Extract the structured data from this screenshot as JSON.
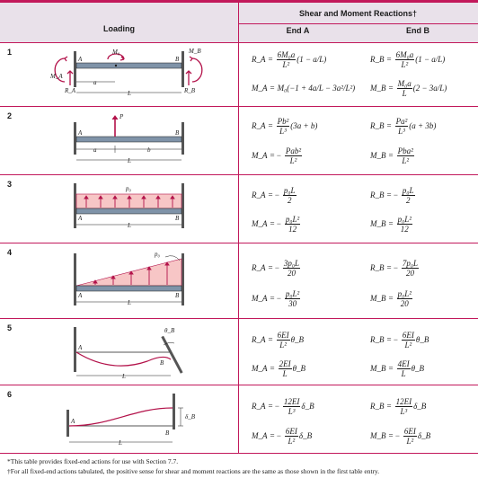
{
  "header": {
    "loading": "Loading",
    "reactions_title": "Shear and Moment Reactions†",
    "end_a": "End A",
    "end_b": "End B"
  },
  "rows": [
    {
      "num": "1",
      "labels": {
        "m0": "M₀",
        "mb": "M_B",
        "ma": "M_A",
        "ra": "R_A",
        "rb": "R_B",
        "a": "A",
        "b": "B",
        "dim_a": "a",
        "dim_L": "L"
      },
      "ra": {
        "lhs": "R_A",
        "op": "=",
        "num": "6M₀a",
        "den": "L²",
        "tail": "(1 − a/L)"
      },
      "rb": {
        "lhs": "R_B",
        "op": "=",
        "num": "6M₀a",
        "den": "L²",
        "tail": "(1 − a/L)"
      },
      "ma": {
        "lhs": "M_A",
        "op": "=",
        "pre": "M₀",
        "tail": "(−1 + 4a/L − 3a²/L²)"
      },
      "mb": {
        "lhs": "M_B",
        "op": "=",
        "num": "M₀a",
        "den": "L",
        "tail": "(2 − 3a/L)"
      }
    },
    {
      "num": "2",
      "labels": {
        "p": "P",
        "a_end": "A",
        "b_end": "B",
        "dim_a": "a",
        "dim_b": "b",
        "dim_L": "L"
      },
      "ra": {
        "lhs": "R_A",
        "op": "=",
        "num": "Pb²",
        "den": "L³",
        "tail": "(3a + b)"
      },
      "rb": {
        "lhs": "R_B",
        "op": "=",
        "num": "Pa²",
        "den": "L³",
        "tail": "(a + 3b)"
      },
      "ma": {
        "lhs": "M_A",
        "op": "= −",
        "num": "Pab²",
        "den": "L²",
        "tail": ""
      },
      "mb": {
        "lhs": "M_B",
        "op": "=",
        "num": "Pba²",
        "den": "L²",
        "tail": ""
      }
    },
    {
      "num": "3",
      "labels": {
        "p0": "p₀",
        "a_end": "A",
        "b_end": "B",
        "dim_L": "L"
      },
      "ra": {
        "lhs": "R_A",
        "op": "= −",
        "num": "p₀L",
        "den": "2",
        "tail": ""
      },
      "rb": {
        "lhs": "R_B",
        "op": "= −",
        "num": "p₀L",
        "den": "2",
        "tail": ""
      },
      "ma": {
        "lhs": "M_A",
        "op": "= −",
        "num": "p₀L²",
        "den": "12",
        "tail": ""
      },
      "mb": {
        "lhs": "M_B",
        "op": "=",
        "num": "p₀L²",
        "den": "12",
        "tail": ""
      }
    },
    {
      "num": "4",
      "labels": {
        "p0": "p₀",
        "a_end": "A",
        "b_end": "B",
        "dim_L": "L"
      },
      "ra": {
        "lhs": "R_A",
        "op": "= −",
        "num": "3p₀L",
        "den": "20",
        "tail": ""
      },
      "rb": {
        "lhs": "R_B",
        "op": "= −",
        "num": "7p₀L",
        "den": "20",
        "tail": ""
      },
      "ma": {
        "lhs": "M_A",
        "op": "= −",
        "num": "p₀L²",
        "den": "30",
        "tail": ""
      },
      "mb": {
        "lhs": "M_B",
        "op": "=",
        "num": "p₀L²",
        "den": "20",
        "tail": ""
      }
    },
    {
      "num": "5",
      "labels": {
        "theta": "θ_B",
        "a_end": "A",
        "b_end": "B",
        "dim_L": "L"
      },
      "ra": {
        "lhs": "R_A",
        "op": "=",
        "num": "6EI",
        "den": "L²",
        "tail": "θ_B"
      },
      "rb": {
        "lhs": "R_B",
        "op": "= −",
        "num": "6EI",
        "den": "L²",
        "tail": "θ_B"
      },
      "ma": {
        "lhs": "M_A",
        "op": "=",
        "num": "2EI",
        "den": "L",
        "tail": "θ_B"
      },
      "mb": {
        "lhs": "M_B",
        "op": "=",
        "num": "4EI",
        "den": "L",
        "tail": "θ_B"
      }
    },
    {
      "num": "6",
      "labels": {
        "delta": "δ_B",
        "a_end": "A",
        "b_end": "B",
        "dim_L": "L"
      },
      "ra": {
        "lhs": "R_A",
        "op": "= −",
        "num": "12EI",
        "den": "L³",
        "tail": "δ_B"
      },
      "rb": {
        "lhs": "R_B",
        "op": "=",
        "num": "12EI",
        "den": "L³",
        "tail": "δ_B"
      },
      "ma": {
        "lhs": "M_A",
        "op": "= −",
        "num": "6EI",
        "den": "L²",
        "tail": "δ_B"
      },
      "mb": {
        "lhs": "M_B",
        "op": "= −",
        "num": "6EI",
        "den": "L²",
        "tail": "δ_B"
      }
    }
  ],
  "footnotes": {
    "star": "*This table provides fixed-end actions for use with Section 7.7.",
    "dagger": "†For all fixed-end actions tabulated, the positive sense for shear and moment reactions are the same as those shown in the first table entry."
  },
  "colors": {
    "rule": "#c2185b",
    "header_bg": "#e9e1ea",
    "load_fill": "#f7c6c6",
    "arrow": "#b3124a",
    "beam": "#7f93a8"
  }
}
